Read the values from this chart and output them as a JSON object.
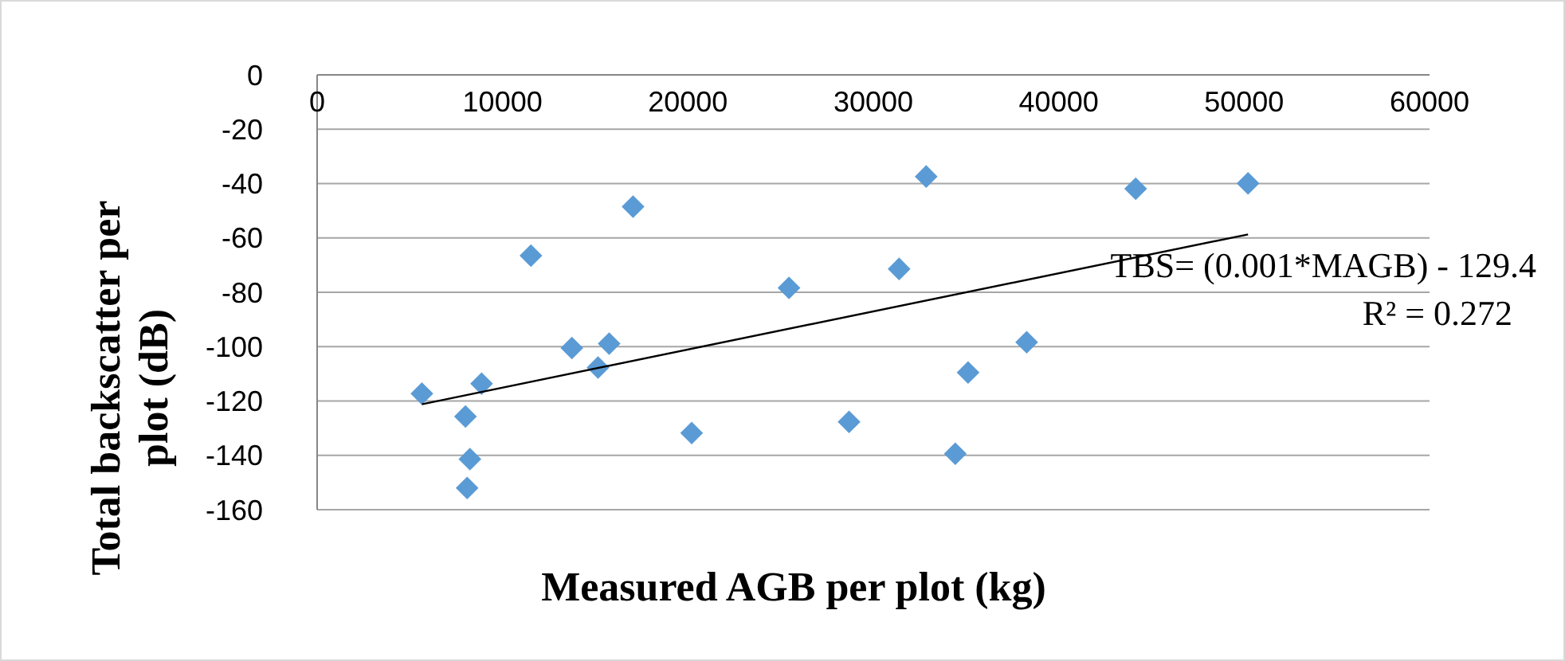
{
  "chart_data": {
    "type": "scatter",
    "xlabel": "Measured AGB per plot (kg)",
    "ylabel": "Total  backscatter per plot (dB)",
    "xlim": [
      0,
      60000
    ],
    "xticks": [
      0,
      10000,
      20000,
      30000,
      40000,
      50000,
      60000
    ],
    "ylim": [
      -160,
      0
    ],
    "yticks": [
      -160,
      -140,
      -120,
      -100,
      -80,
      -60,
      -40,
      -20,
      0
    ],
    "grid": "y",
    "series": [
      {
        "marker": "diamond",
        "color": "#5b9bd5",
        "x": [
          5650,
          8000,
          8240,
          8090,
          8870,
          11530,
          13740,
          15150,
          15750,
          17040,
          20200,
          25450,
          28690,
          31390,
          32850,
          34420,
          35110,
          38270,
          44150,
          50210
        ],
        "values": [
          -117.3,
          -125.7,
          -141.4,
          -152,
          -113.6,
          -66.5,
          -100.5,
          -107.7,
          -98.9,
          -48.5,
          -131.8,
          -78.4,
          -127.7,
          -71.4,
          -37.4,
          -139.4,
          -109.5,
          -98.4,
          -41.9,
          -39.9
        ]
      },
      {
        "type": "line",
        "marker": "none",
        "color": "#000000",
        "x": [
          5650,
          50210
        ],
        "values": [
          -121.2,
          -58.7
        ]
      }
    ],
    "annotations": [
      "TBS= (0.001*MAGB) - 129.4",
      "R² = 0.272"
    ]
  }
}
